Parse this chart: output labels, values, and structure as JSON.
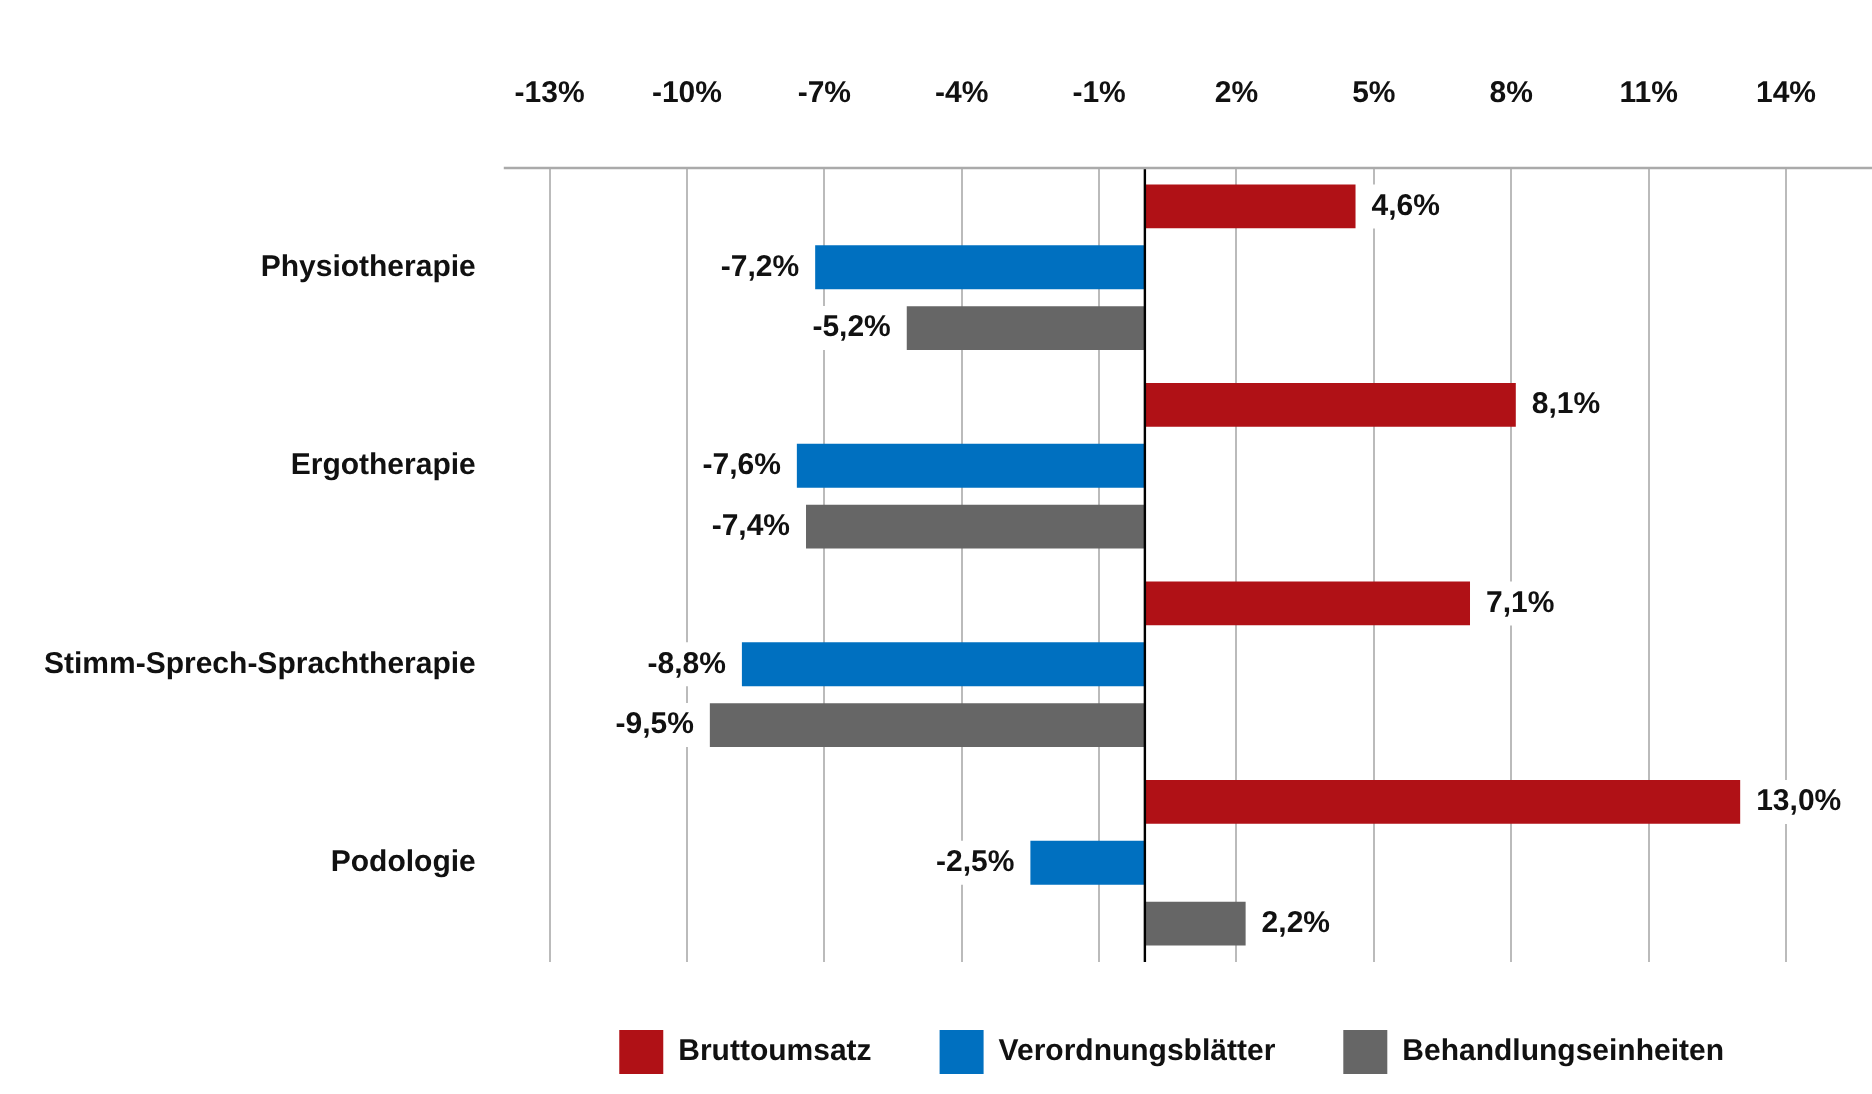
{
  "chart_data": {
    "type": "bar",
    "orientation": "horizontal",
    "categories": [
      "Physiotherapie",
      "Ergotherapie",
      "Stimm-Sprech-Sprachtherapie",
      "Podologie"
    ],
    "series": [
      {
        "name": "Bruttoumsatz",
        "color": "#b01116",
        "values": [
          4.6,
          8.1,
          7.1,
          13.0
        ],
        "value_labels": [
          "4,6%",
          "8,1%",
          "7,1%",
          "13,0%"
        ]
      },
      {
        "name": "Verordnungsblätter",
        "color": "#0070c0",
        "values": [
          -7.2,
          -7.6,
          -8.8,
          -2.5
        ],
        "value_labels": [
          "-7,2%",
          "-7,6%",
          "-8,8%",
          "-2,5%"
        ]
      },
      {
        "name": "Behandlungseinheiten",
        "color": "#666666",
        "values": [
          -5.2,
          -7.4,
          -9.5,
          2.2
        ],
        "value_labels": [
          "-5,2%",
          "-7,4%",
          "-9,5%",
          "2,2%"
        ]
      }
    ],
    "xlim": [
      -14,
      14
    ],
    "xticks": [
      {
        "value": -13,
        "label": "-13%"
      },
      {
        "value": -10,
        "label": "-10%"
      },
      {
        "value": -7,
        "label": "-7%"
      },
      {
        "value": -4,
        "label": "-4%"
      },
      {
        "value": -1,
        "label": "-1%"
      },
      {
        "value": 2,
        "label": "2%"
      },
      {
        "value": 5,
        "label": "5%"
      },
      {
        "value": 8,
        "label": "8%"
      },
      {
        "value": 11,
        "label": "11%"
      },
      {
        "value": 14,
        "label": "14%"
      }
    ],
    "grid": "x",
    "legend": "bottom"
  }
}
